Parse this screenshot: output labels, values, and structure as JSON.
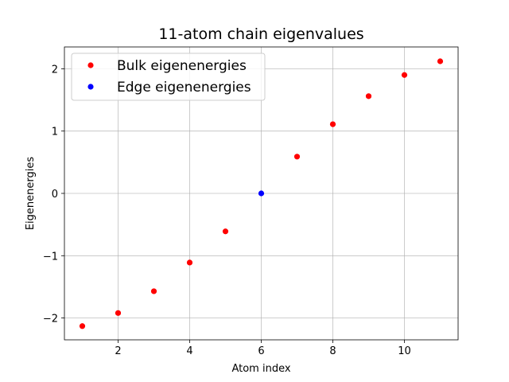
{
  "chart_data": {
    "type": "scatter",
    "title": "11-atom chain eigenvalues",
    "xlabel": "Atom index",
    "ylabel": "Eigenenergies",
    "xlim": [
      0.5,
      11.5
    ],
    "ylim": [
      -2.35,
      2.35
    ],
    "xticks": [
      2,
      4,
      6,
      8,
      10
    ],
    "yticks": [
      -2,
      -1,
      0,
      1,
      2
    ],
    "xtick_labels": [
      "2",
      "4",
      "6",
      "8",
      "10"
    ],
    "ytick_labels": [
      "−2",
      "−1",
      "0",
      "1",
      "2"
    ],
    "grid": true,
    "legend_position": "top-left",
    "series": [
      {
        "name": "Bulk eigenenergies",
        "color": "#ff0000",
        "points": [
          {
            "x": 1,
            "y": -2.13
          },
          {
            "x": 2,
            "y": -1.92
          },
          {
            "x": 3,
            "y": -1.57
          },
          {
            "x": 4,
            "y": -1.11
          },
          {
            "x": 5,
            "y": -0.61
          },
          {
            "x": 7,
            "y": 0.59
          },
          {
            "x": 8,
            "y": 1.11
          },
          {
            "x": 9,
            "y": 1.56
          },
          {
            "x": 10,
            "y": 1.9
          },
          {
            "x": 11,
            "y": 2.12
          }
        ]
      },
      {
        "name": "Edge eigenenergies",
        "color": "#0000ff",
        "points": [
          {
            "x": 6,
            "y": 0.0
          }
        ]
      }
    ]
  }
}
